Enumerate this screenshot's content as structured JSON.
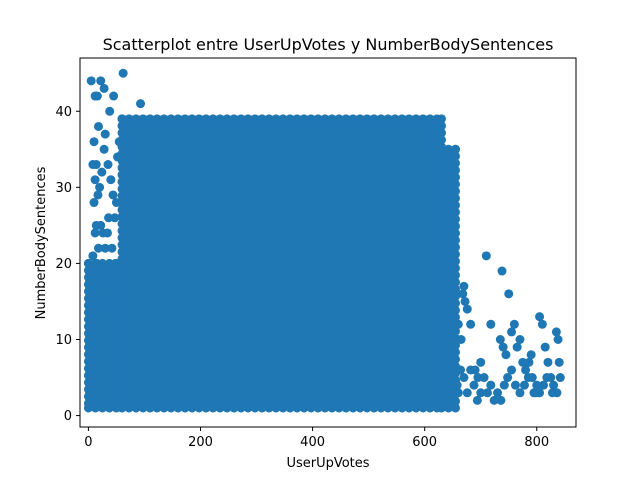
{
  "chart_data": {
    "type": "scatter",
    "title": "Scatterplot entre UserUpVotes y NumberBodySentences",
    "xlabel": "UserUpVotes",
    "ylabel": "NumberBodySentences",
    "xlim": [
      -15,
      870
    ],
    "ylim": [
      -1.5,
      47
    ],
    "xticks": [
      0,
      200,
      400,
      600,
      800
    ],
    "yticks": [
      0,
      10,
      20,
      30,
      40
    ],
    "marker_color": "#1f77b4",
    "grid": false,
    "legend": "none",
    "dense_region": {
      "x": [
        60,
        630
      ],
      "y": [
        1,
        39
      ]
    },
    "left_strip": {
      "x": [
        0,
        60
      ],
      "y": [
        1,
        20
      ]
    },
    "mid_right_strip": {
      "x": [
        630,
        655
      ],
      "y": [
        1,
        35
      ]
    },
    "points": [
      [
        5,
        44
      ],
      [
        12,
        42
      ],
      [
        22,
        44
      ],
      [
        16,
        42
      ],
      [
        28,
        43
      ],
      [
        62,
        45
      ],
      [
        93,
        41
      ],
      [
        45,
        42
      ],
      [
        38,
        40
      ],
      [
        10,
        36
      ],
      [
        18,
        38
      ],
      [
        8,
        33
      ],
      [
        14,
        33
      ],
      [
        12,
        31
      ],
      [
        20,
        30
      ],
      [
        24,
        32
      ],
      [
        28,
        35
      ],
      [
        30,
        37
      ],
      [
        17,
        29
      ],
      [
        10,
        28
      ],
      [
        14,
        25
      ],
      [
        12,
        24
      ],
      [
        22,
        25
      ],
      [
        26,
        24
      ],
      [
        30,
        22
      ],
      [
        34,
        24
      ],
      [
        36,
        26
      ],
      [
        18,
        22
      ],
      [
        8,
        21
      ],
      [
        15,
        20
      ],
      [
        40,
        31
      ],
      [
        44,
        29
      ],
      [
        47,
        26
      ],
      [
        50,
        28
      ],
      [
        52,
        34
      ],
      [
        55,
        36
      ],
      [
        35,
        33
      ],
      [
        42,
        22
      ],
      [
        44,
        18
      ],
      [
        48,
        20
      ],
      [
        50,
        16
      ],
      [
        40,
        15
      ],
      [
        670,
        17
      ],
      [
        672,
        15
      ],
      [
        676,
        14
      ],
      [
        668,
        16
      ],
      [
        682,
        12
      ],
      [
        660,
        12
      ],
      [
        665,
        10
      ],
      [
        690,
        6
      ],
      [
        695,
        5
      ],
      [
        700,
        7
      ],
      [
        710,
        21
      ],
      [
        738,
        19
      ],
      [
        750,
        16
      ],
      [
        718,
        12
      ],
      [
        735,
        10
      ],
      [
        740,
        9
      ],
      [
        745,
        8
      ],
      [
        755,
        11
      ],
      [
        760,
        12
      ],
      [
        765,
        9
      ],
      [
        770,
        10
      ],
      [
        775,
        7
      ],
      [
        780,
        6
      ],
      [
        785,
        5
      ],
      [
        790,
        8
      ],
      [
        795,
        3
      ],
      [
        800,
        4
      ],
      [
        805,
        13
      ],
      [
        810,
        12
      ],
      [
        815,
        9
      ],
      [
        820,
        7
      ],
      [
        825,
        5
      ],
      [
        830,
        4
      ],
      [
        835,
        11
      ],
      [
        838,
        10
      ],
      [
        840,
        7
      ],
      [
        842,
        5
      ],
      [
        836,
        3
      ],
      [
        828,
        3
      ],
      [
        818,
        5
      ],
      [
        812,
        4
      ],
      [
        805,
        3
      ],
      [
        798,
        3
      ],
      [
        792,
        5
      ],
      [
        786,
        7
      ],
      [
        778,
        4
      ],
      [
        770,
        3
      ],
      [
        762,
        4
      ],
      [
        755,
        6
      ],
      [
        748,
        5
      ],
      [
        742,
        4
      ],
      [
        736,
        2
      ],
      [
        730,
        3
      ],
      [
        724,
        2
      ],
      [
        718,
        4
      ],
      [
        712,
        3
      ],
      [
        706,
        5
      ],
      [
        700,
        3
      ],
      [
        694,
        2
      ],
      [
        688,
        4
      ],
      [
        682,
        6
      ],
      [
        676,
        3
      ],
      [
        670,
        5
      ],
      [
        664,
        6
      ],
      [
        658,
        4
      ],
      [
        652,
        7
      ],
      [
        648,
        5
      ],
      [
        645,
        3
      ],
      [
        650,
        2
      ],
      [
        660,
        3
      ]
    ]
  }
}
